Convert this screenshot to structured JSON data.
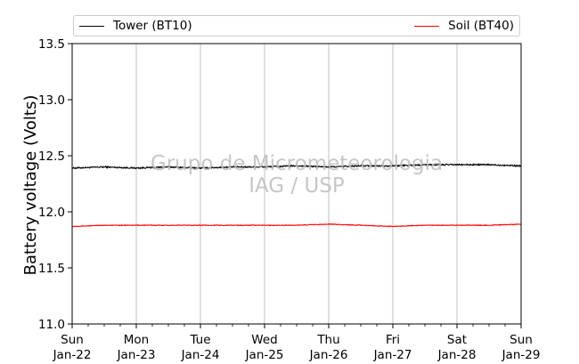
{
  "chart_data": {
    "type": "line",
    "ylabel": "Battery voltage (Volts)",
    "xlabel": "",
    "ylim": [
      11.0,
      13.5
    ],
    "yticks": [
      "11.0",
      "11.5",
      "12.0",
      "12.5",
      "13.0",
      "13.5"
    ],
    "x_range_days": [
      "2023-01-22",
      "2023-01-29"
    ],
    "xticks": [
      {
        "day": "Sun",
        "date": "Jan-22"
      },
      {
        "day": "Mon",
        "date": "Jan-23"
      },
      {
        "day": "Tue",
        "date": "Jan-24"
      },
      {
        "day": "Wed",
        "date": "Jan-25"
      },
      {
        "day": "Thu",
        "date": "Jan-26"
      },
      {
        "day": "Fri",
        "date": "Jan-27"
      },
      {
        "day": "Sat",
        "date": "Jan-28"
      },
      {
        "day": "Sun",
        "date": "Jan-29"
      }
    ],
    "grid": "vertical",
    "legend_position": "top",
    "watermark": [
      "Grupo de Micrometeorologia",
      "IAG / USP"
    ],
    "series": [
      {
        "name": "Tower (BT10)",
        "color": "#000000",
        "x": [
          "Jan-22 00:00",
          "Jan-22 12:00",
          "Jan-23 00:00",
          "Jan-23 12:00",
          "Jan-24 00:00",
          "Jan-24 12:00",
          "Jan-25 00:00",
          "Jan-25 12:00",
          "Jan-26 00:00",
          "Jan-26 12:00",
          "Jan-27 00:00",
          "Jan-27 12:00",
          "Jan-28 00:00",
          "Jan-28 12:00",
          "Jan-29 00:00"
        ],
        "values": [
          12.39,
          12.4,
          12.39,
          12.4,
          12.39,
          12.4,
          12.4,
          12.41,
          12.4,
          12.41,
          12.41,
          12.42,
          12.42,
          12.42,
          12.41
        ]
      },
      {
        "name": "Soil (BT40)",
        "color": "#ff0000",
        "x": [
          "Jan-22 00:00",
          "Jan-22 12:00",
          "Jan-23 00:00",
          "Jan-23 12:00",
          "Jan-24 00:00",
          "Jan-24 12:00",
          "Jan-25 00:00",
          "Jan-25 12:00",
          "Jan-26 00:00",
          "Jan-26 12:00",
          "Jan-27 00:00",
          "Jan-27 12:00",
          "Jan-28 00:00",
          "Jan-28 12:00",
          "Jan-29 00:00"
        ],
        "values": [
          11.87,
          11.88,
          11.88,
          11.88,
          11.88,
          11.88,
          11.88,
          11.88,
          11.89,
          11.88,
          11.87,
          11.88,
          11.88,
          11.88,
          11.89
        ]
      }
    ]
  }
}
